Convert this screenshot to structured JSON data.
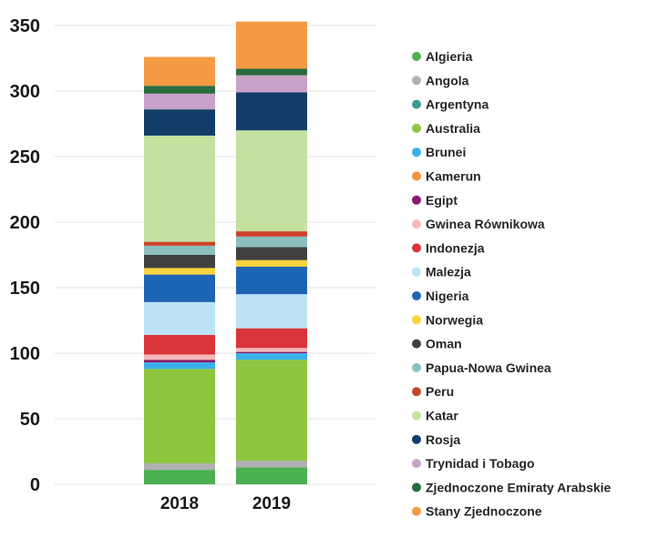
{
  "chart_data": {
    "type": "bar",
    "stacked": true,
    "categories": [
      "2018",
      "2019"
    ],
    "ylim": [
      0,
      350
    ],
    "yticks": [
      0,
      50,
      100,
      150,
      200,
      250,
      300,
      350
    ],
    "grid": true,
    "legend_position": "right",
    "series": [
      {
        "name": "Algieria",
        "color": "#4caf50",
        "values": [
          11,
          13
        ]
      },
      {
        "name": "Angola",
        "color": "#b0b0b0",
        "values": [
          5,
          5
        ]
      },
      {
        "name": "Argentyna",
        "color": "#3a9a94",
        "values": [
          0,
          0
        ]
      },
      {
        "name": "Australia",
        "color": "#8dc63f",
        "values": [
          72,
          77
        ]
      },
      {
        "name": "Brunei",
        "color": "#3aaee8",
        "values": [
          5,
          5
        ]
      },
      {
        "name": "Kamerun",
        "color": "#f7913d",
        "values": [
          0,
          0
        ]
      },
      {
        "name": "Egipt",
        "color": "#8b1a6b",
        "values": [
          2,
          1
        ]
      },
      {
        "name": "Gwinea Równikowa",
        "color": "#f7b8b8",
        "values": [
          4,
          3
        ]
      },
      {
        "name": "Indonezja",
        "color": "#d9343a",
        "values": [
          15,
          15
        ]
      },
      {
        "name": "Malezja",
        "color": "#bde3f7",
        "values": [
          25,
          26
        ]
      },
      {
        "name": "Nigeria",
        "color": "#1e64b4",
        "values": [
          21,
          21
        ]
      },
      {
        "name": "Norwegia",
        "color": "#f9d23c",
        "values": [
          5,
          5
        ]
      },
      {
        "name": "Oman",
        "color": "#404040",
        "values": [
          10,
          10
        ]
      },
      {
        "name": "Papua-Nowa Gwinea",
        "color": "#8cbfbf",
        "values": [
          7,
          8
        ]
      },
      {
        "name": "Peru",
        "color": "#c9452a",
        "values": [
          3,
          4
        ]
      },
      {
        "name": "Katar",
        "color": "#c5e1a0",
        "values": [
          81,
          77
        ]
      },
      {
        "name": "Rosja",
        "color": "#133d69",
        "values": [
          20,
          29
        ]
      },
      {
        "name": "Trynidad i Tobago",
        "color": "#c8a2c8",
        "values": [
          12,
          13
        ]
      },
      {
        "name": "Zjednoczone Emiraty Arabskie",
        "color": "#2a6b3f",
        "values": [
          6,
          5
        ]
      },
      {
        "name": "Stany Zjednoczone",
        "color": "#f39a43",
        "values": [
          22,
          36
        ]
      }
    ]
  }
}
